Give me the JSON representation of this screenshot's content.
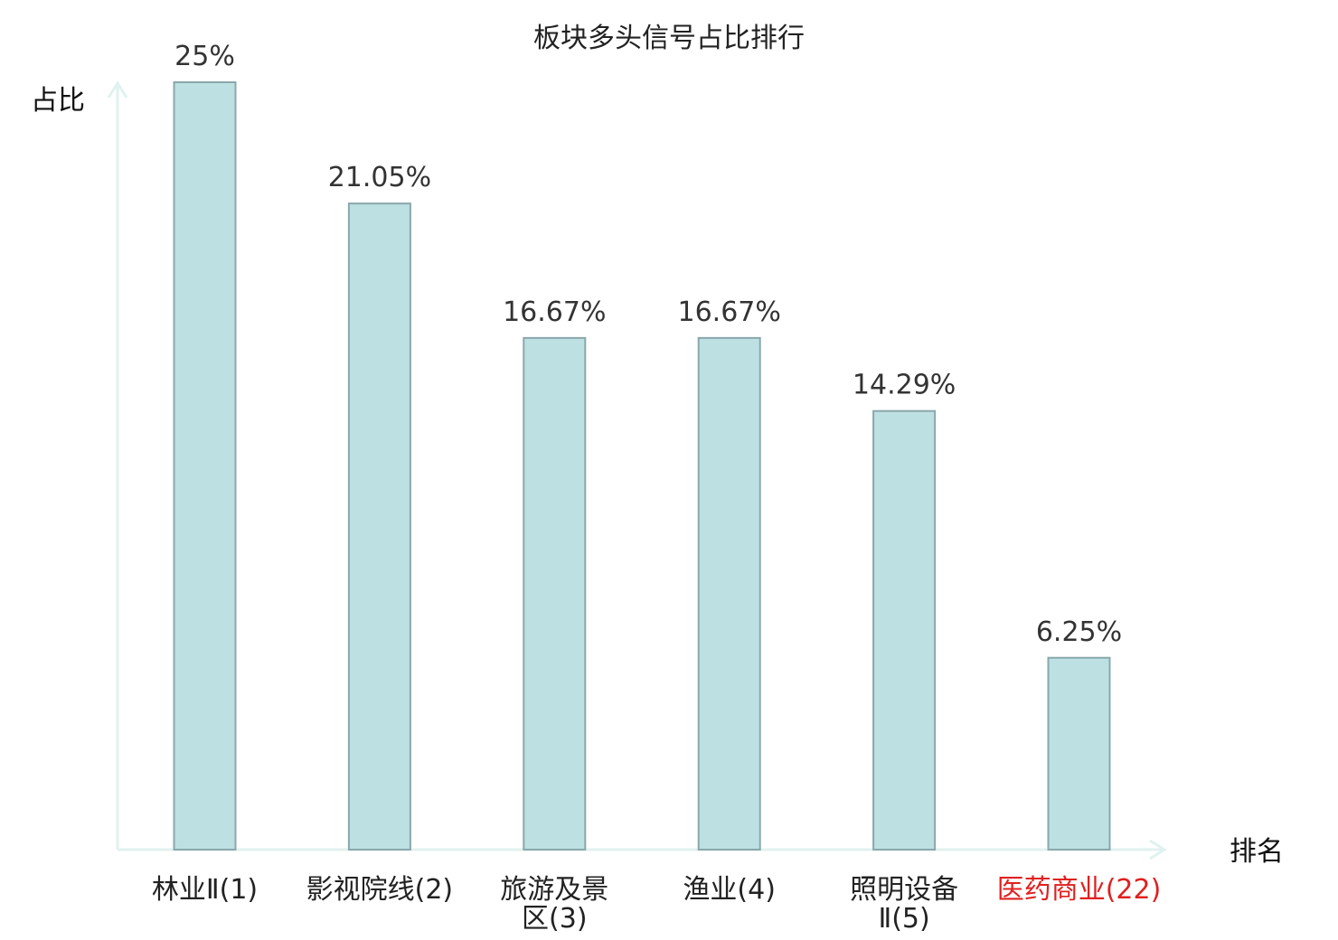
{
  "chart_data": {
    "type": "bar",
    "title": "板块多头信号占比排行",
    "ylabel": "占比",
    "xlabel": "排名",
    "categories": [
      [
        "林业Ⅱ(1)"
      ],
      [
        "影视院线(2)"
      ],
      [
        "旅游及景",
        "区(3)"
      ],
      [
        "渔业(4)"
      ],
      [
        "照明设备",
        "Ⅱ(5)"
      ],
      [
        "医药商业(22)"
      ]
    ],
    "values": [
      25,
      21.05,
      16.67,
      16.67,
      14.29,
      6.25
    ],
    "value_labels": [
      "25%",
      "21.05%",
      "16.67%",
      "16.67%",
      "14.29%",
      "6.25%"
    ],
    "highlight_index": 5,
    "ylim": [
      0,
      25
    ],
    "grid": false,
    "colors": {
      "bar_fill": "#bde0e3",
      "bar_stroke": "#8aa8ab",
      "axis": "#e0f2ef",
      "highlight_text": "#e02020"
    }
  }
}
